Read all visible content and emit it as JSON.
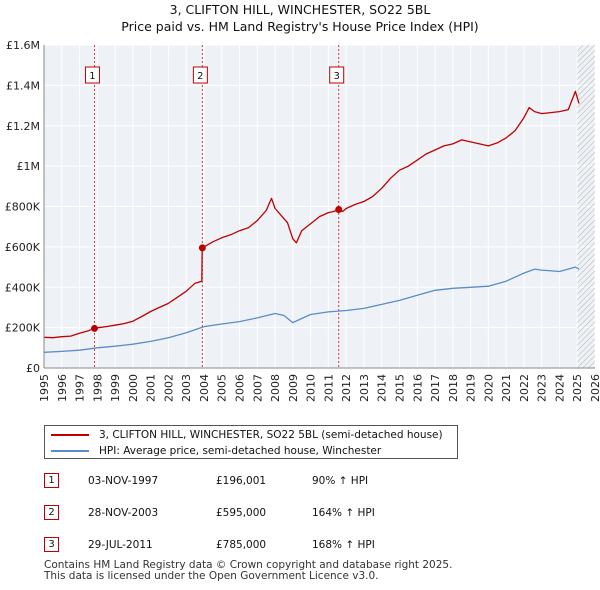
{
  "title_line1": "3, CLIFTON HILL, WINCHESTER, SO22 5BL",
  "title_line2": "Price paid vs. HM Land Registry's House Price Index (HPI)",
  "chart_data": {
    "type": "line",
    "title": "3, CLIFTON HILL, WINCHESTER, SO22 5BL — Price paid vs. HM Land Registry's House Price Index (HPI)",
    "xlabel": "",
    "ylabel": "",
    "xlim": [
      1995,
      2026
    ],
    "ylim": [
      0,
      1600000
    ],
    "x_ticks": [
      "1995",
      "1996",
      "1997",
      "1998",
      "1999",
      "2000",
      "2001",
      "2002",
      "2003",
      "2004",
      "2005",
      "2006",
      "2007",
      "2008",
      "2009",
      "2010",
      "2011",
      "2012",
      "2013",
      "2014",
      "2015",
      "2016",
      "2017",
      "2018",
      "2019",
      "2020",
      "2021",
      "2022",
      "2023",
      "2024",
      "2025",
      "2026"
    ],
    "y_ticks": [
      {
        "value": 0,
        "label": "£0"
      },
      {
        "value": 200000,
        "label": "£200K"
      },
      {
        "value": 400000,
        "label": "£400K"
      },
      {
        "value": 600000,
        "label": "£600K"
      },
      {
        "value": 800000,
        "label": "£800K"
      },
      {
        "value": 1000000,
        "label": "£1M"
      },
      {
        "value": 1200000,
        "label": "£1.2M"
      },
      {
        "value": 1400000,
        "label": "£1.4M"
      },
      {
        "value": 1600000,
        "label": "£1.6M"
      }
    ],
    "grid": true,
    "series": [
      {
        "name": "3, CLIFTON HILL, WINCHESTER, SO22 5BL (semi-detached house)",
        "color": "#c00000",
        "x": [
          1995.0,
          1995.5,
          1996.0,
          1996.5,
          1997.0,
          1997.5,
          1997.84,
          1998.0,
          1998.5,
          1999.0,
          1999.5,
          2000.0,
          2000.5,
          2001.0,
          2001.5,
          2002.0,
          2002.5,
          2003.0,
          2003.5,
          2003.88,
          2003.9,
          2004.5,
          2005.0,
          2005.5,
          2006.0,
          2006.5,
          2007.0,
          2007.5,
          2007.8,
          2008.0,
          2008.3,
          2008.7,
          2009.0,
          2009.2,
          2009.5,
          2010.0,
          2010.5,
          2011.0,
          2011.3,
          2011.58,
          2011.8,
          2012.0,
          2012.5,
          2013.0,
          2013.5,
          2014.0,
          2014.5,
          2015.0,
          2015.5,
          2016.0,
          2016.5,
          2017.0,
          2017.5,
          2018.0,
          2018.5,
          2019.0,
          2019.5,
          2020.0,
          2020.5,
          2021.0,
          2021.5,
          2022.0,
          2022.3,
          2022.6,
          2023.0,
          2023.5,
          2024.0,
          2024.5,
          2024.9,
          2025.1
        ],
        "values": [
          152000,
          150000,
          155000,
          158000,
          172000,
          185000,
          196001,
          199000,
          205000,
          212000,
          220000,
          232000,
          255000,
          280000,
          300000,
          320000,
          350000,
          380000,
          420000,
          430000,
          595000,
          625000,
          645000,
          660000,
          680000,
          695000,
          730000,
          780000,
          840000,
          790000,
          760000,
          720000,
          640000,
          620000,
          680000,
          715000,
          750000,
          770000,
          775000,
          785000,
          775000,
          790000,
          810000,
          825000,
          850000,
          890000,
          940000,
          980000,
          1000000,
          1030000,
          1060000,
          1080000,
          1100000,
          1110000,
          1130000,
          1120000,
          1110000,
          1100000,
          1115000,
          1140000,
          1175000,
          1240000,
          1290000,
          1270000,
          1260000,
          1265000,
          1270000,
          1280000,
          1370000,
          1310000
        ]
      },
      {
        "name": "HPI: Average price, semi-detached house, Winchester",
        "color": "#5a8cc8",
        "x": [
          1995.0,
          1996.0,
          1997.0,
          1998.0,
          1999.0,
          2000.0,
          2001.0,
          2002.0,
          2003.0,
          2004.0,
          2005.0,
          2006.0,
          2007.0,
          2008.0,
          2008.5,
          2009.0,
          2009.5,
          2010.0,
          2011.0,
          2012.0,
          2013.0,
          2014.0,
          2015.0,
          2016.0,
          2017.0,
          2018.0,
          2019.0,
          2020.0,
          2021.0,
          2022.0,
          2022.6,
          2023.0,
          2024.0,
          2024.9,
          2025.1
        ],
        "values": [
          78000,
          82000,
          88000,
          100000,
          108000,
          118000,
          132000,
          150000,
          175000,
          205000,
          218000,
          230000,
          248000,
          270000,
          260000,
          225000,
          245000,
          265000,
          278000,
          285000,
          295000,
          315000,
          335000,
          360000,
          385000,
          395000,
          400000,
          405000,
          430000,
          470000,
          490000,
          485000,
          478000,
          500000,
          490000
        ]
      }
    ],
    "sales": [
      {
        "id": "1",
        "date": "03-NOV-1997",
        "x": 1997.84,
        "price": 196001,
        "price_label": "£196,001",
        "hpi_label": "90% ↑ HPI"
      },
      {
        "id": "2",
        "date": "28-NOV-2003",
        "x": 2003.91,
        "price": 595000,
        "price_label": "£595,000",
        "hpi_label": "164% ↑ HPI"
      },
      {
        "id": "3",
        "date": "29-JUL-2011",
        "x": 2011.58,
        "price": 785000,
        "price_label": "£785,000",
        "hpi_label": "168% ↑ HPI"
      }
    ],
    "projection_start": 2025.0
  },
  "legend": {
    "property_label": "3, CLIFTON HILL, WINCHESTER, SO22 5BL (semi-detached house)",
    "hpi_label": "HPI: Average price, semi-detached house, Winchester"
  },
  "colors": {
    "property": "#c00000",
    "hpi": "#5a8cc8",
    "plot_bg": "#eef2f7",
    "grid": "#ffffff"
  },
  "footer": {
    "line1": "Contains HM Land Registry data © Crown copyright and database right 2025.",
    "line2": "This data is licensed under the Open Government Licence v3.0."
  }
}
